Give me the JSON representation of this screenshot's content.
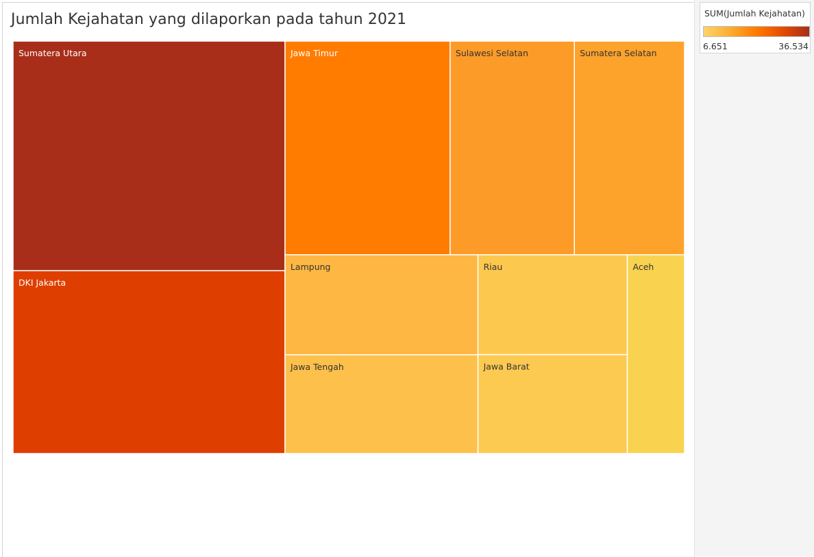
{
  "chart_data": {
    "type": "treemap",
    "title": "Jumlah Kejahatan yang dilaporkan pada tahun 2021",
    "legend": {
      "title": "SUM(Jumlah Kejahatan)",
      "min_label": "6.651",
      "max_label": "36.534",
      "min": 6651,
      "max": 36534,
      "colors": [
        "#fcd36a",
        "#fbad33",
        "#ff7a00",
        "#e54a02",
        "#a62e1b"
      ],
      "placement": "top-right"
    },
    "categories": [
      "Sumatera Utara",
      "DKI Jakarta",
      "Jawa Timur",
      "Sulawesi Selatan",
      "Sumatera Selatan",
      "Lampung",
      "Jawa Tengah",
      "Riau",
      "Jawa Barat",
      "Aceh"
    ],
    "values": [
      36534,
      29103,
      20640,
      15533,
      13769,
      11290,
      11152,
      8726,
      8644,
      6651
    ],
    "colors": [
      "#a82e1a",
      "#de3f00",
      "#ff7c00",
      "#fd9b28",
      "#fda32b",
      "#fdb742",
      "#fdc04a",
      "#fdc84e",
      "#fdca51",
      "#f9d24f"
    ]
  }
}
